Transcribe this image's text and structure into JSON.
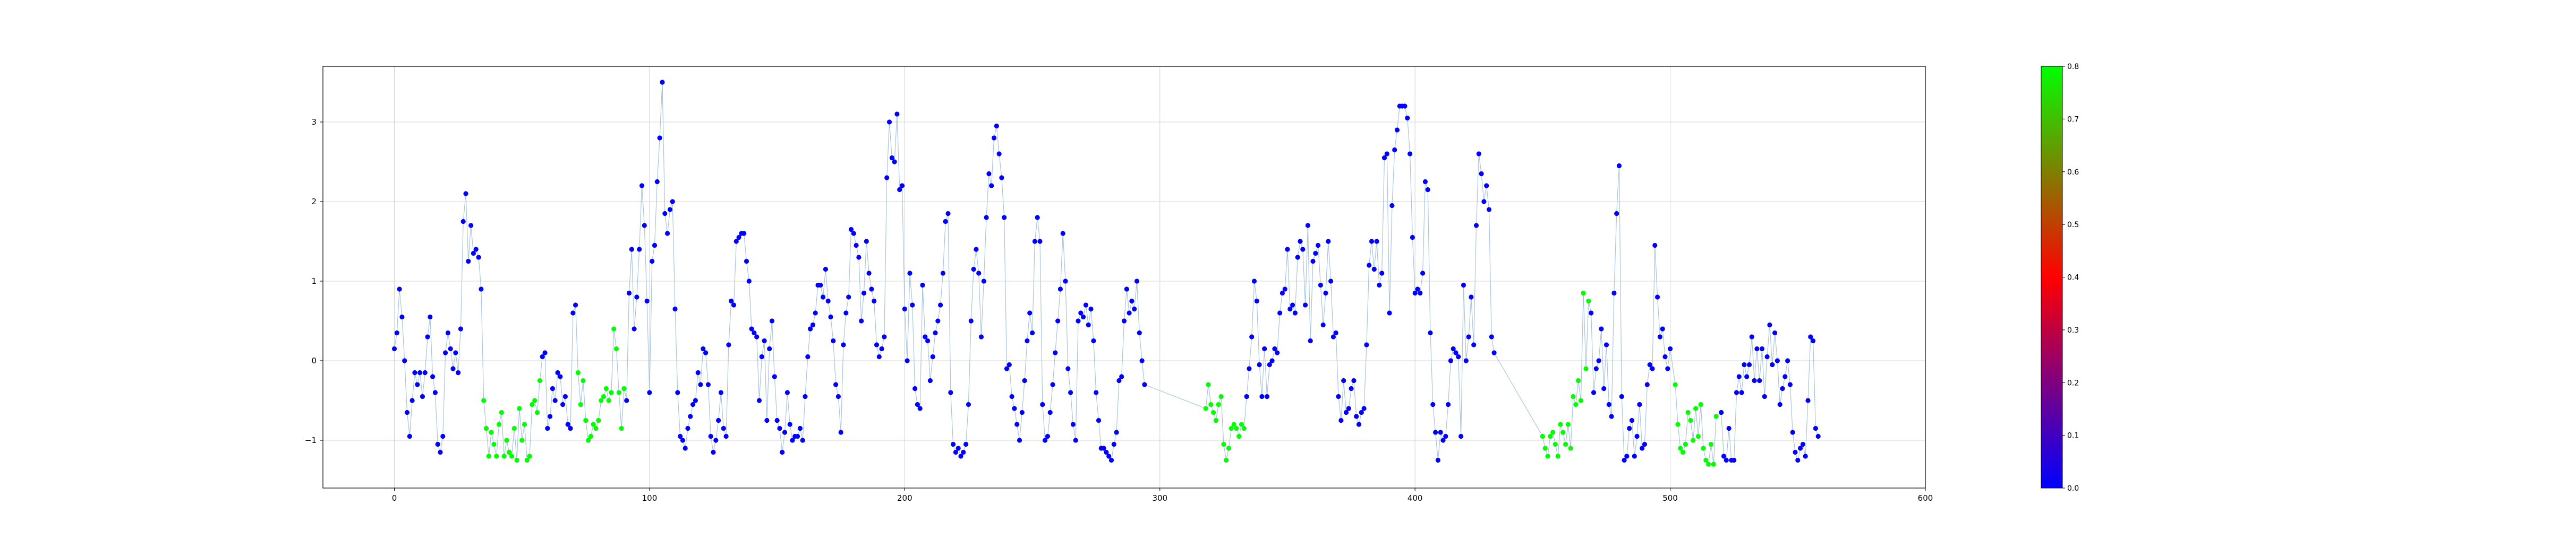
{
  "chart_data": {
    "type": "scatter",
    "title": "",
    "xlabel": "",
    "ylabel": "",
    "xlim": [
      -28,
      600
    ],
    "ylim": [
      -1.6,
      3.7
    ],
    "xticks": [
      0,
      100,
      200,
      300,
      400,
      500,
      600
    ],
    "yticks": [
      -1,
      0,
      1,
      2,
      3
    ],
    "grid": true,
    "connecting_line": true,
    "colorbar": {
      "vmin": 0.0,
      "vmax": 0.8,
      "ticks": [
        "0.0",
        "0.1",
        "0.2",
        "0.3",
        "0.4",
        "0.5",
        "0.6",
        "0.7",
        "0.8"
      ],
      "colors": [
        "#0000ff",
        "#ff0000",
        "#00ff00"
      ]
    },
    "series_colors": {
      "low": "#0000ff",
      "high": "#00ff00",
      "line": "#a9c4dd"
    },
    "segments": [
      {
        "x0": 0,
        "color_value": 0.0,
        "y": [
          0.15,
          0.35,
          0.9,
          0.55,
          0.0,
          -0.65,
          -0.95,
          -0.5,
          -0.15,
          -0.3,
          -0.15,
          -0.45,
          -0.15,
          0.3,
          0.55,
          -0.2,
          -0.4,
          -1.05,
          -1.15,
          -0.95,
          0.1,
          0.35,
          0.15,
          -0.1,
          0.1,
          -0.15,
          0.4,
          1.75,
          2.1,
          1.25,
          1.7,
          1.35,
          1.4,
          1.3,
          0.9
        ]
      },
      {
        "x0": 35,
        "color_value": 0.8,
        "y": [
          -0.5,
          -0.85,
          -1.2,
          -0.9,
          -1.05,
          -1.2,
          -0.8,
          -0.65,
          -1.2,
          -1.0,
          -1.15,
          -1.2,
          -0.85,
          -1.25,
          -0.6,
          -1.0,
          -0.8,
          -1.25,
          -1.2,
          -0.55,
          -0.5,
          -0.65,
          -0.25
        ]
      },
      {
        "x0": 58,
        "color_value": 0.0,
        "y": [
          0.05,
          0.1,
          -0.85,
          -0.7,
          -0.35,
          -0.5,
          -0.15,
          -0.2,
          -0.55,
          -0.45,
          -0.8,
          -0.85,
          0.6,
          0.7
        ]
      },
      {
        "x0": 72,
        "color_value": 0.8,
        "y": [
          -0.15,
          -0.55,
          -0.25,
          -0.75,
          -1.0,
          -0.95,
          -0.8,
          -0.85,
          -0.75,
          -0.5,
          -0.45,
          -0.35,
          -0.5,
          -0.4,
          0.4,
          0.15,
          -0.4,
          -0.85,
          -0.35
        ]
      },
      {
        "x0": 91,
        "color_value": 0.0,
        "y": [
          -0.5,
          0.85,
          1.4,
          0.4,
          0.8,
          1.4,
          2.2,
          1.7,
          0.75,
          -0.4,
          1.25,
          1.45,
          2.25,
          2.8,
          3.5,
          1.85,
          1.6,
          1.9,
          2.0,
          0.65,
          -0.4,
          -0.95,
          -1.0,
          -1.1,
          -0.85,
          -0.7,
          -0.55,
          -0.5,
          -0.15,
          -0.3,
          0.15,
          0.1,
          -0.3,
          -0.95,
          -1.15,
          -1.0,
          -0.75,
          -0.4,
          -0.85,
          -0.95,
          0.2,
          0.75,
          0.7,
          1.5,
          1.55,
          1.6,
          1.6,
          1.25,
          1.0,
          0.4,
          0.35,
          0.3,
          -0.5,
          0.05,
          0.25,
          -0.75,
          0.15,
          0.5,
          -0.2,
          -0.75,
          -0.85,
          -1.15,
          -0.9,
          -0.4,
          -0.8,
          -1.0,
          -0.95,
          -0.95,
          -0.85,
          -1.0,
          -0.45,
          0.05,
          0.4,
          0.45,
          0.6,
          0.95,
          0.95,
          0.8,
          1.15,
          0.75,
          0.55,
          0.25,
          -0.3,
          -0.45,
          -0.9,
          0.2,
          0.6,
          0.8,
          1.65,
          1.6,
          1.45,
          1.3,
          0.5,
          0.85,
          1.5,
          1.1,
          0.9,
          0.75,
          0.2,
          0.05,
          0.15,
          0.3,
          2.3,
          3.0,
          2.55,
          2.5,
          3.1,
          2.15,
          2.2,
          0.65,
          0.0,
          1.1,
          0.7,
          -0.35,
          -0.55,
          -0.6,
          0.95,
          0.3,
          0.25,
          -0.25,
          0.05,
          0.35,
          0.5,
          0.7,
          1.1,
          1.75,
          1.85,
          -0.4,
          -1.05,
          -1.15,
          -1.1,
          -1.2,
          -1.15,
          -1.05,
          -0.55,
          0.5,
          1.15,
          1.4,
          1.1,
          0.3,
          1.0,
          1.8,
          2.35,
          2.2,
          2.8,
          2.95,
          2.6,
          2.3,
          1.8,
          -0.1,
          -0.05,
          -0.45,
          -0.6,
          -0.8,
          -1.0,
          -0.65,
          -0.25,
          0.25,
          0.6,
          0.35,
          1.5,
          1.8,
          1.5,
          -0.55,
          -1.0,
          -0.95,
          -0.65,
          -0.3,
          0.1,
          0.5,
          0.9,
          1.6,
          1.0,
          -0.1,
          -0.4,
          -0.8,
          -1.0,
          0.5,
          0.6,
          0.55,
          0.7,
          0.45,
          0.65,
          0.25,
          -0.4,
          -0.75,
          -1.1,
          -1.1,
          -1.15,
          -1.2,
          -1.25,
          -1.05,
          -0.9,
          -0.25,
          -0.2,
          0.5,
          0.9,
          0.6,
          0.75,
          0.65,
          1.0,
          0.35,
          0.0,
          -0.3
        ]
      },
      {
        "x0": 318,
        "color_value": 0.8,
        "y": [
          -0.6,
          -0.3,
          -0.55,
          -0.65,
          -0.75,
          -0.55,
          -0.45,
          -1.05,
          -1.25,
          -1.1,
          -0.85,
          -0.8,
          -0.85,
          -0.95,
          -0.8,
          -0.85
        ]
      },
      {
        "x0": 334,
        "color_value": 0.0,
        "y": [
          -0.45,
          -0.1,
          0.3,
          1.0,
          0.75,
          -0.05,
          -0.45,
          0.15,
          -0.45,
          -0.05,
          0.0,
          0.15,
          0.1,
          0.6,
          0.85,
          0.9,
          1.4,
          0.65,
          0.7,
          0.6,
          1.3,
          1.5,
          1.4,
          0.7,
          1.7,
          0.25,
          1.25,
          1.35,
          1.45,
          0.95,
          0.45,
          0.85,
          1.5,
          1.0,
          0.3,
          0.35,
          -0.45,
          -0.75,
          -0.25,
          -0.65,
          -0.6,
          -0.35,
          -0.25,
          -0.7,
          -0.8,
          -0.65,
          -0.6,
          0.2,
          1.2,
          1.5,
          1.15,
          1.5,
          0.95,
          1.1,
          2.55,
          2.6,
          0.6,
          1.95,
          2.65,
          2.9,
          3.2,
          3.2,
          3.2,
          3.05,
          2.6,
          1.55,
          0.85,
          0.9,
          0.85,
          1.1,
          2.25,
          2.15,
          0.35,
          -0.55,
          -0.9,
          -1.25,
          -0.9,
          -1.0,
          -0.95,
          -0.55,
          0.0,
          0.15,
          0.1,
          0.05,
          -0.95,
          0.95,
          0.0,
          0.3,
          0.8,
          0.2,
          1.7,
          2.6,
          2.35,
          2.0,
          2.2,
          1.9,
          0.3,
          0.1
        ]
      },
      {
        "x0": 450,
        "color_value": 0.8,
        "y": [
          -0.95,
          -1.1,
          -1.2,
          -0.95,
          -0.9,
          -1.05,
          -1.2,
          -0.8,
          -0.9,
          -1.05,
          -0.8,
          -1.1,
          -0.45,
          -0.55,
          -0.25,
          -0.5,
          0.85,
          -0.1,
          0.75
        ]
      },
      {
        "x0": 469,
        "color_value": 0.0,
        "y": [
          0.6,
          -0.4,
          -0.1,
          0.0,
          0.4,
          -0.35,
          0.2,
          -0.55,
          -0.7,
          0.85,
          1.85,
          2.45,
          -0.45,
          -1.25,
          -1.2,
          -0.85,
          -0.75,
          -1.2,
          -0.95,
          -0.55,
          -1.1,
          -1.05,
          -0.3,
          -0.05,
          -0.1,
          1.45,
          0.8,
          0.3,
          0.4,
          0.05,
          -0.1,
          0.15
        ]
      },
      {
        "x0": 502,
        "color_value": 0.8,
        "y": [
          -0.3,
          -0.8,
          -1.1,
          -1.15,
          -1.05,
          -0.65,
          -0.75,
          -1.0,
          -0.6,
          -0.95,
          -0.55,
          -1.1,
          -1.25,
          -1.3,
          -1.05,
          -1.3,
          -0.7
        ]
      },
      {
        "x0": 520,
        "color_value": 0.0,
        "y": [
          -0.65,
          -1.2,
          -1.25,
          -0.85,
          -1.25,
          -1.25,
          -0.4,
          -0.2,
          -0.4,
          -0.05,
          -0.2,
          -0.05,
          0.3,
          -0.25,
          0.15,
          -0.25,
          0.15,
          -0.45,
          0.05,
          0.45,
          -0.05,
          0.35,
          0.0,
          -0.55,
          -0.35,
          -0.2,
          0.0,
          -0.3,
          -0.9,
          -1.15,
          -1.25,
          -1.1,
          -1.05,
          -1.2,
          -0.5,
          0.3,
          0.25,
          -0.85,
          -0.95
        ]
      }
    ]
  }
}
